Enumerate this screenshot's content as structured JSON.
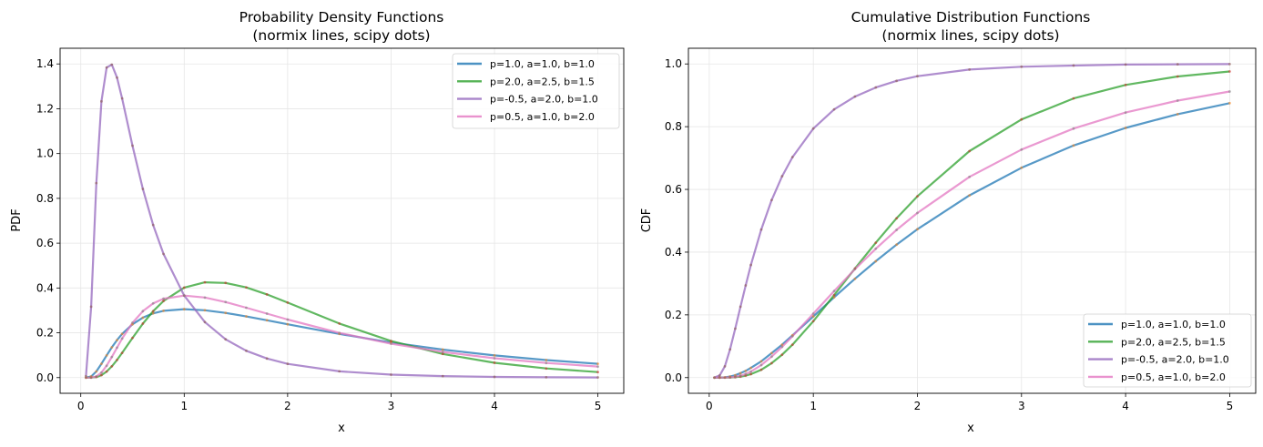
{
  "chart_data": [
    {
      "type": "line",
      "title": "Probability Density Functions",
      "subtitle": "(normix lines, scipy dots)",
      "xlabel": "x",
      "ylabel": "PDF",
      "xlim": [
        -0.2,
        5.25
      ],
      "ylim": [
        -0.07,
        1.47
      ],
      "xticks": [
        0,
        1,
        2,
        3,
        4,
        5
      ],
      "xtick_labels": [
        "0",
        "1",
        "2",
        "3",
        "4",
        "5"
      ],
      "yticks": [
        0,
        0.2,
        0.4,
        0.6,
        0.8,
        1.0,
        1.2,
        1.4
      ],
      "ytick_labels": [
        "0.0",
        "0.2",
        "0.4",
        "0.6",
        "0.8",
        "1.0",
        "1.2",
        "1.4"
      ],
      "grid": true,
      "legend_position": "top-right",
      "x": [
        0.05,
        0.1,
        0.15,
        0.2,
        0.25,
        0.3,
        0.35,
        0.4,
        0.5,
        0.6,
        0.7,
        0.8,
        1.0,
        1.2,
        1.4,
        1.6,
        1.8,
        2.0,
        2.5,
        3.0,
        3.5,
        4.0,
        4.5,
        5.0
      ],
      "series": [
        {
          "name": "p=1.0, a=1.0, b=1.0",
          "color": "#1f77b4",
          "dot_color": "#ff7f0e",
          "values": [
            0.0,
            0.0053,
            0.0276,
            0.0617,
            0.0992,
            0.1351,
            0.1672,
            0.1949,
            0.238,
            0.2675,
            0.2867,
            0.298,
            0.3056,
            0.3005,
            0.2886,
            0.2731,
            0.2559,
            0.238,
            0.1949,
            0.1569,
            0.1252,
            0.0992,
            0.0783,
            0.0617
          ]
        },
        {
          "name": "p=2.0, a=2.5, b=1.5",
          "color": "#2ca02c",
          "dot_color": "#d62728",
          "values": [
            0.0,
            0.0001,
            0.0025,
            0.0109,
            0.027,
            0.0502,
            0.0787,
            0.1104,
            0.1772,
            0.241,
            0.2967,
            0.3421,
            0.4017,
            0.4253,
            0.4226,
            0.4024,
            0.3712,
            0.3349,
            0.2413,
            0.1631,
            0.1056,
            0.0663,
            0.0408,
            0.0247
          ]
        },
        {
          "name": "p=-0.5, a=2.0, b=1.0",
          "color": "#9467bd",
          "dot_color": "#8c564b",
          "values": [
            0.0063,
            0.3166,
            0.868,
            1.233,
            1.384,
            1.397,
            1.339,
            1.246,
            1.035,
            0.842,
            0.681,
            0.5516,
            0.366,
            0.2478,
            0.171,
            0.1198,
            0.0851,
            0.0612,
            0.0279,
            0.0133,
            0.0066,
            0.0033,
            0.0017,
            0.0009
          ]
        },
        {
          "name": "p=0.5, a=1.0, b=2.0",
          "color": "#e377c2",
          "dot_color": "#7f7f7f",
          "values": [
            0.0,
            0.0002,
            0.005,
            0.0224,
            0.053,
            0.0921,
            0.1337,
            0.1743,
            0.2446,
            0.2964,
            0.3312,
            0.3523,
            0.3661,
            0.3573,
            0.3372,
            0.312,
            0.2854,
            0.259,
            0.1993,
            0.1515,
            0.1145,
            0.0865,
            0.0653,
            0.0493
          ]
        }
      ]
    },
    {
      "type": "line",
      "title": "Cumulative Distribution Functions",
      "subtitle": "(normix lines, scipy dots)",
      "xlabel": "x",
      "ylabel": "CDF",
      "xlim": [
        -0.2,
        5.25
      ],
      "ylim": [
        -0.05,
        1.05
      ],
      "xticks": [
        0,
        1,
        2,
        3,
        4,
        5
      ],
      "xtick_labels": [
        "0",
        "1",
        "2",
        "3",
        "4",
        "5"
      ],
      "yticks": [
        0,
        0.2,
        0.4,
        0.6,
        0.8,
        1.0
      ],
      "ytick_labels": [
        "0.0",
        "0.2",
        "0.4",
        "0.6",
        "0.8",
        "1.0"
      ],
      "grid": true,
      "legend_position": "bottom-right",
      "x": [
        0.05,
        0.1,
        0.15,
        0.2,
        0.25,
        0.3,
        0.35,
        0.4,
        0.5,
        0.6,
        0.7,
        0.8,
        1.0,
        1.2,
        1.4,
        1.6,
        1.8,
        2.0,
        2.5,
        3.0,
        3.5,
        4.0,
        4.5,
        5.0
      ],
      "series": [
        {
          "name": "p=1.0, a=1.0, b=1.0",
          "color": "#1f77b4",
          "dot_color": "#ff7f0e",
          "values": [
            0.0,
            0.0002,
            0.0008,
            0.0035,
            0.0075,
            0.014,
            0.0215,
            0.031,
            0.052,
            0.078,
            0.105,
            0.135,
            0.195,
            0.256,
            0.315,
            0.371,
            0.424,
            0.473,
            0.581,
            0.669,
            0.74,
            0.796,
            0.84,
            0.875
          ]
        },
        {
          "name": "p=2.0, a=2.5, b=1.5",
          "color": "#2ca02c",
          "dot_color": "#d62728",
          "values": [
            0.0,
            0.0,
            0.0,
            0.0004,
            0.0013,
            0.0031,
            0.0063,
            0.0109,
            0.025,
            0.046,
            0.073,
            0.105,
            0.18,
            0.263,
            0.348,
            0.43,
            0.508,
            0.578,
            0.722,
            0.823,
            0.89,
            0.933,
            0.96,
            0.976
          ]
        },
        {
          "name": "p=-0.5, a=2.0, b=1.0",
          "color": "#9467bd",
          "dot_color": "#8c564b",
          "values": [
            0.0001,
            0.007,
            0.036,
            0.09,
            0.156,
            0.226,
            0.294,
            0.359,
            0.472,
            0.566,
            0.642,
            0.703,
            0.794,
            0.855,
            0.896,
            0.925,
            0.946,
            0.961,
            0.982,
            0.991,
            0.995,
            0.998,
            0.999,
            0.9995
          ]
        },
        {
          "name": "p=0.5, a=1.0, b=2.0",
          "color": "#e377c2",
          "dot_color": "#7f7f7f",
          "values": [
            0.0,
            0.0,
            0.0001,
            0.0007,
            0.0025,
            0.006,
            0.0115,
            0.019,
            0.04,
            0.067,
            0.098,
            0.132,
            0.204,
            0.276,
            0.346,
            0.411,
            0.471,
            0.525,
            0.64,
            0.727,
            0.794,
            0.845,
            0.883,
            0.912
          ]
        }
      ]
    }
  ]
}
